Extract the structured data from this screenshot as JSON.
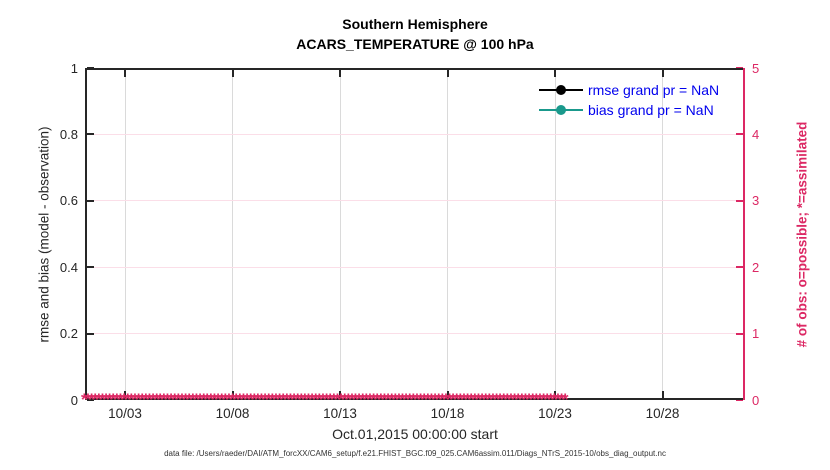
{
  "title": {
    "line1": "Southern Hemisphere",
    "line2": "ACARS_TEMPERATURE @ 100 hPa"
  },
  "left_axis": {
    "label": "rmse and bias (model - observation)",
    "ticks": [
      "0",
      "0.2",
      "0.4",
      "0.6",
      "0.8",
      "1"
    ]
  },
  "right_axis": {
    "label": "# of obs: o=possible; *=assimilated",
    "ticks": [
      "0",
      "1",
      "2",
      "3",
      "4",
      "5"
    ]
  },
  "x_axis": {
    "ticks": [
      "10/03",
      "10/08",
      "10/13",
      "10/18",
      "10/23",
      "10/28"
    ],
    "label": "Oct.01,2015 00:00:00 start"
  },
  "legend": [
    {
      "label": "rmse grand pr = NaN",
      "color": "#000000",
      "marker": "filled-circle"
    },
    {
      "label": "bias grand pr = NaN",
      "color": "#1a998c",
      "marker": "filled-circle"
    }
  ],
  "footer": "data file: /Users/raeder/DAI/ATM_forcXX/CAM6_setup/f.e21.FHIST_BGC.f09_025.CAM6assim.011/Diags_NTrS_2015-10/obs_diag_output.nc",
  "colors": {
    "right_axis_pink": "#dc2864",
    "grid_vertical_gray": "#dadada",
    "grid_horizontal_pink": "#fbdee8",
    "axis_black": "#262626",
    "legend_text_blue": "#0000ee",
    "bias_teal": "#1a998c",
    "rmse_black": "#000000"
  },
  "obs_marker_symbol": "*",
  "chart_data": {
    "type": "line",
    "title": "Southern Hemisphere",
    "subtitle": "ACARS_TEMPERATURE @ 100 hPa",
    "xlabel": "Oct.01,2015 00:00:00 start",
    "x_tick_labels": [
      "10/03",
      "10/08",
      "10/13",
      "10/18",
      "10/23",
      "10/28"
    ],
    "x_range": [
      "2015-10-01",
      "2015-11-01"
    ],
    "ylabel_left": "rmse and bias (model - observation)",
    "ylim_left": [
      0,
      1
    ],
    "yticks_left": [
      0,
      0.2,
      0.4,
      0.6,
      0.8,
      1
    ],
    "ylabel_right": "# of obs: o=possible; *=assimilated",
    "ylim_right": [
      0,
      5
    ],
    "yticks_right": [
      0,
      1,
      2,
      3,
      4,
      5
    ],
    "grid": true,
    "legend_position": "top-right-inside",
    "series": [
      {
        "name": "rmse grand pr = NaN",
        "axis": "left",
        "color": "#000000",
        "values": null,
        "note": "all NaN - no curve drawn"
      },
      {
        "name": "bias grand pr = NaN",
        "axis": "left",
        "color": "#1a998c",
        "values": null,
        "note": "all NaN - no curve drawn"
      },
      {
        "name": "# of obs assimilated",
        "axis": "right",
        "color": "#dc2864",
        "marker": "*",
        "constant_value": 0,
        "note": "asterisk markers at y=0 for every time step from 2015-10-01 to 2015-11-01"
      }
    ]
  }
}
